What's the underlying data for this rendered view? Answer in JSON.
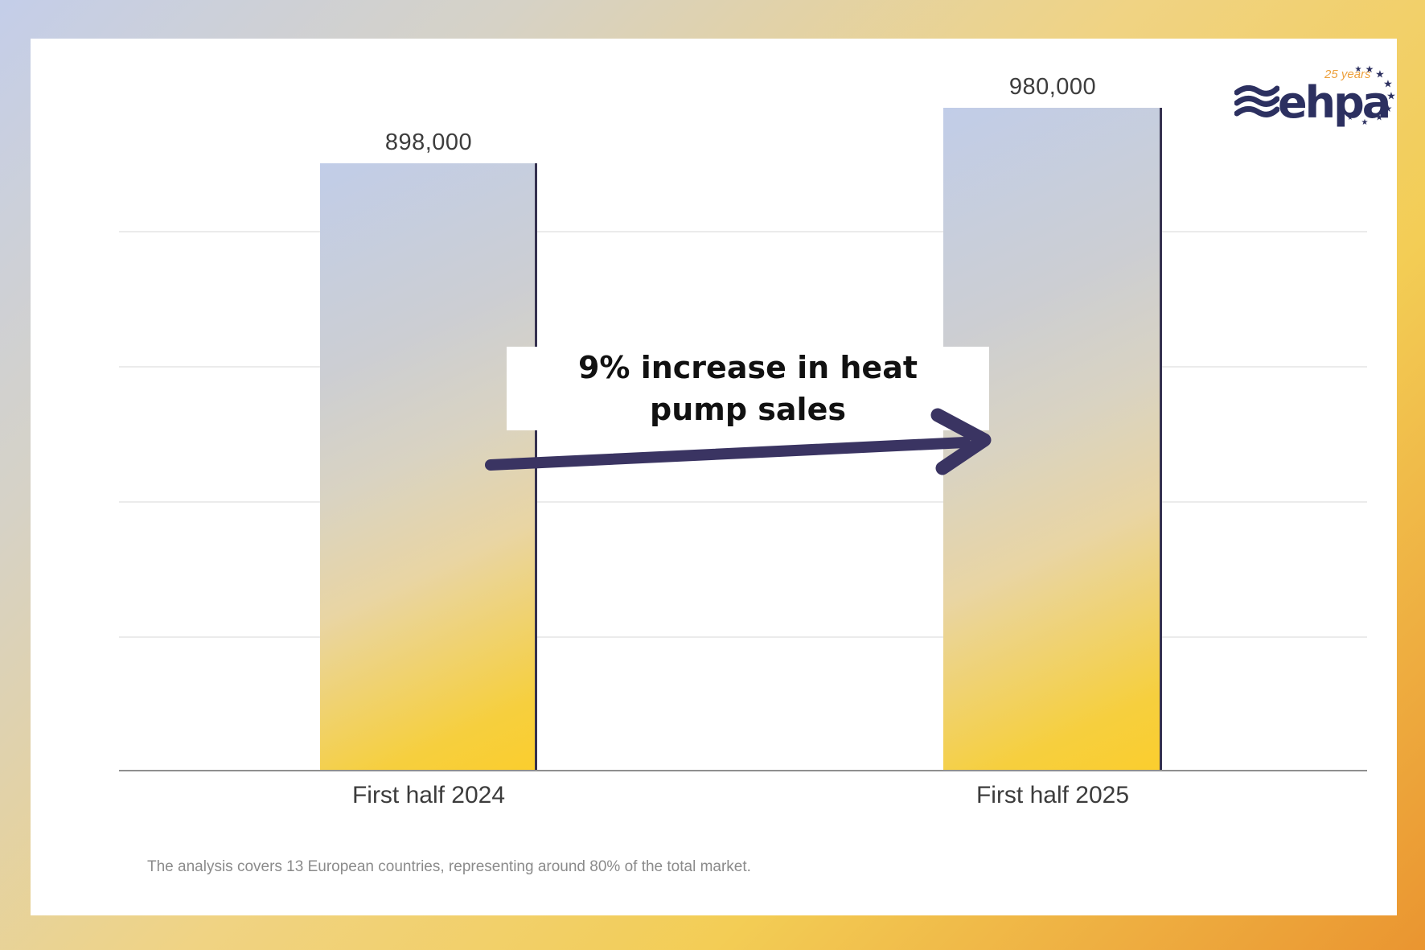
{
  "colors": {
    "frame_top_left": "#c4cee9",
    "frame_mid_gold": "#f0d383",
    "frame_bottom_right": "#ea9530",
    "bar_gradient_top": "#c1cde8",
    "bar_gradient_bottom": "#fbce2e",
    "bar_right_border": "#35314f",
    "arrow": "#3a3462",
    "annotation_text": "#111111",
    "axis_line": "#8f8f8f",
    "gridline": "#ebebeb",
    "label_text": "#3c3c3c",
    "footnote_text": "#8b8b8b",
    "logo_navy": "#2c3060",
    "logo_orange": "#eda13e"
  },
  "chart_data": {
    "type": "bar",
    "title": "",
    "categories": [
      "First half 2024",
      "First half 2025"
    ],
    "values": [
      898000,
      980000
    ],
    "data_labels": [
      "898,000",
      "980,000"
    ],
    "ylim": [
      0,
      1080000
    ],
    "gridlines": [
      200000,
      400000,
      600000,
      800000
    ],
    "grid": true,
    "legend": "none",
    "xlabel": "",
    "ylabel": "",
    "annotation": "9% increase in heat pump sales",
    "annotation_lines": [
      "9% increase in heat",
      "pump sales"
    ],
    "footnote": "The analysis covers 13 European countries, representing around 80% of the total market."
  },
  "logo": {
    "wordmark": "ehpa",
    "tagline": "25 years"
  }
}
